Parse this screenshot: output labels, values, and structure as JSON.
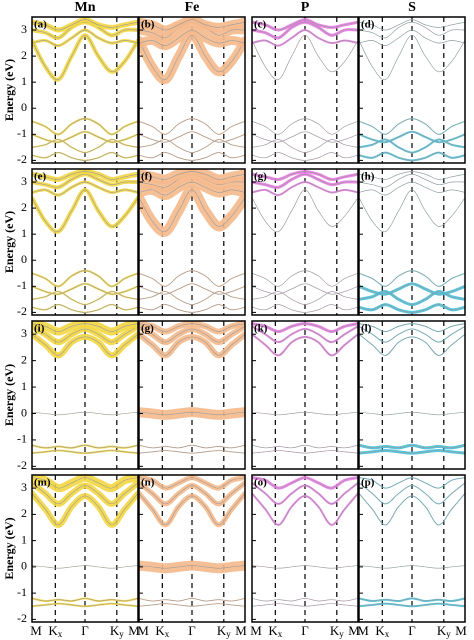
{
  "figure": {
    "type": "band-structure",
    "columns": [
      {
        "name": "Mn",
        "color": "#f3d640"
      },
      {
        "name": "Fe",
        "color": "#f5b98c"
      },
      {
        "name": "P",
        "color": "#e878e4"
      },
      {
        "name": "S",
        "color": "#45c0da"
      }
    ],
    "ylabel": "Energy (eV)",
    "ylim": [
      -2.1,
      3.5
    ],
    "yticks": [
      -2,
      -1,
      0,
      1,
      2,
      3
    ],
    "x": [
      0,
      0.125,
      0.25,
      0.375,
      0.5,
      0.625,
      0.75,
      0.875,
      1
    ],
    "kpoints": [
      {
        "value": 0,
        "label": "M"
      },
      {
        "value": 0.22,
        "label": "K",
        "sub": "x"
      },
      {
        "value": 0.5,
        "label": "Γ"
      },
      {
        "value": 0.8,
        "label": "K",
        "sub": "y"
      },
      {
        "value": 1,
        "label": "M"
      }
    ],
    "rows": [
      {
        "labels": [
          "(a)",
          "(b)",
          "(c)",
          "(d)"
        ],
        "bands": [
          {
            "values": [
              2.6,
              1.6,
              1.1,
              2.0,
              2.8,
              2.0,
              1.4,
              1.8,
              2.6
            ],
            "weights": [
              4,
              9,
              0.5,
              0.5
            ]
          },
          {
            "values": [
              2.5,
              2.6,
              2.4,
              2.7,
              3.0,
              2.7,
              2.5,
              2.6,
              2.5
            ],
            "weights": [
              3,
              9,
              2,
              0.5
            ]
          },
          {
            "values": [
              3.0,
              2.9,
              2.7,
              3.1,
              3.3,
              3.1,
              2.8,
              3.0,
              3.0
            ],
            "weights": [
              4,
              9,
              3,
              0.5
            ]
          },
          {
            "values": [
              3.3,
              3.2,
              3.0,
              3.2,
              3.4,
              3.2,
              3.1,
              3.2,
              3.3
            ],
            "weights": [
              5,
              9,
              3,
              0.5
            ]
          },
          {
            "values": [
              -0.5,
              -0.7,
              -1.0,
              -0.6,
              -0.4,
              -0.6,
              -1.0,
              -0.7,
              -0.5
            ],
            "weights": [
              2,
              1,
              0.5,
              1
            ]
          },
          {
            "values": [
              -1.0,
              -1.2,
              -1.3,
              -1.1,
              -0.9,
              -1.1,
              -1.3,
              -1.2,
              -1.0
            ],
            "weights": [
              2,
              1,
              0.5,
              2
            ]
          },
          {
            "values": [
              -1.5,
              -1.4,
              -1.2,
              -1.5,
              -1.7,
              -1.5,
              -1.2,
              -1.4,
              -1.5
            ],
            "weights": [
              1.5,
              1,
              0.5,
              2
            ]
          },
          {
            "values": [
              -1.8,
              -1.9,
              -1.7,
              -1.9,
              -2.0,
              -1.9,
              -1.7,
              -1.9,
              -1.8
            ],
            "weights": [
              1.5,
              1,
              0.5,
              2
            ]
          }
        ]
      },
      {
        "labels": [
          "(e)",
          "(f)",
          "(g)",
          "(h)"
        ],
        "bands": [
          {
            "values": [
              2.4,
              1.5,
              1.1,
              1.9,
              2.7,
              1.9,
              1.3,
              1.7,
              2.4
            ],
            "weights": [
              4,
              10,
              0.5,
              0.5
            ]
          },
          {
            "values": [
              2.6,
              2.7,
              2.5,
              2.8,
              3.0,
              2.8,
              2.6,
              2.7,
              2.6
            ],
            "weights": [
              3,
              10,
              2,
              0.5
            ]
          },
          {
            "values": [
              3.0,
              2.9,
              2.8,
              3.1,
              3.3,
              3.1,
              2.9,
              3.0,
              3.0
            ],
            "weights": [
              4,
              10,
              3,
              0.5
            ]
          },
          {
            "values": [
              3.3,
              3.2,
              3.1,
              3.3,
              3.4,
              3.3,
              3.1,
              3.2,
              3.3
            ],
            "weights": [
              5,
              10,
              3,
              0.5
            ]
          },
          {
            "values": [
              -0.5,
              -0.7,
              -1.0,
              -0.6,
              -0.4,
              -0.6,
              -1.0,
              -0.7,
              -0.5
            ],
            "weights": [
              2,
              1,
              0.5,
              1
            ]
          },
          {
            "values": [
              -1.0,
              -1.2,
              -1.3,
              -1.1,
              -0.9,
              -1.1,
              -1.3,
              -1.2,
              -1.0
            ],
            "weights": [
              2,
              1,
              0.5,
              3
            ]
          },
          {
            "values": [
              -1.5,
              -1.4,
              -1.2,
              -1.5,
              -1.7,
              -1.5,
              -1.2,
              -1.4,
              -1.5
            ],
            "weights": [
              1.5,
              1,
              0.5,
              3
            ]
          },
          {
            "values": [
              -1.8,
              -1.9,
              -1.7,
              -1.9,
              -2.0,
              -1.9,
              -1.7,
              -1.9,
              -1.8
            ],
            "weights": [
              1.5,
              1,
              0.5,
              3
            ]
          }
        ]
      },
      {
        "labels": [
          "(i)",
          "(g)",
          "(k)",
          "(l)"
        ],
        "bands": [
          {
            "values": [
              3.0,
              2.6,
              2.2,
              2.7,
              2.9,
              2.7,
              2.2,
              2.6,
              3.0
            ],
            "weights": [
              6,
              6,
              2,
              1
            ]
          },
          {
            "values": [
              3.3,
              3.0,
              2.7,
              3.0,
              3.2,
              3.0,
              2.7,
              3.0,
              3.3
            ],
            "weights": [
              6,
              6,
              2,
              1
            ]
          },
          {
            "values": [
              3.4,
              3.3,
              3.1,
              3.3,
              3.4,
              3.3,
              3.1,
              3.3,
              3.4
            ],
            "weights": [
              8,
              6,
              3,
              1
            ]
          },
          {
            "values": [
              0.05,
              0,
              -0.05,
              0,
              0.05,
              0,
              -0.05,
              0,
              0.05
            ],
            "weights": [
              0.3,
              10,
              0.3,
              0.3
            ]
          },
          {
            "values": [
              -1.2,
              -1.3,
              -1.25,
              -1.3,
              -1.2,
              -1.3,
              -1.25,
              -1.3,
              -1.2
            ],
            "weights": [
              2,
              1,
              0.5,
              3
            ]
          },
          {
            "values": [
              -1.5,
              -1.45,
              -1.4,
              -1.45,
              -1.5,
              -1.45,
              -1.4,
              -1.45,
              -1.5
            ],
            "weights": [
              2,
              1,
              0.5,
              3
            ]
          }
        ]
      },
      {
        "labels": [
          "(m)",
          "(n)",
          "(o)",
          "(p)"
        ],
        "bands": [
          {
            "values": [
              2.8,
              2.2,
              1.6,
              2.3,
              2.7,
              2.3,
              1.6,
              2.2,
              2.8
            ],
            "weights": [
              6,
              5,
              2,
              1
            ]
          },
          {
            "values": [
              3.2,
              2.8,
              2.4,
              2.8,
              3.1,
              2.8,
              2.4,
              2.8,
              3.2
            ],
            "weights": [
              6,
              5,
              2,
              1
            ]
          },
          {
            "values": [
              3.4,
              3.3,
              3.0,
              3.2,
              3.4,
              3.2,
              3.0,
              3.3,
              3.4
            ],
            "weights": [
              8,
              5,
              3,
              1
            ]
          },
          {
            "values": [
              0.05,
              0,
              -0.05,
              0,
              0.05,
              0,
              -0.05,
              0,
              0.05
            ],
            "weights": [
              0.3,
              10,
              0.3,
              0.3
            ]
          },
          {
            "values": [
              -1.2,
              -1.3,
              -1.25,
              -1.3,
              -1.2,
              -1.3,
              -1.25,
              -1.3,
              -1.2
            ],
            "weights": [
              2,
              1,
              0.5,
              2
            ]
          },
          {
            "values": [
              -1.5,
              -1.45,
              -1.4,
              -1.45,
              -1.5,
              -1.45,
              -1.4,
              -1.45,
              -1.5
            ],
            "weights": [
              2,
              1,
              0.5,
              2
            ]
          }
        ]
      }
    ]
  }
}
